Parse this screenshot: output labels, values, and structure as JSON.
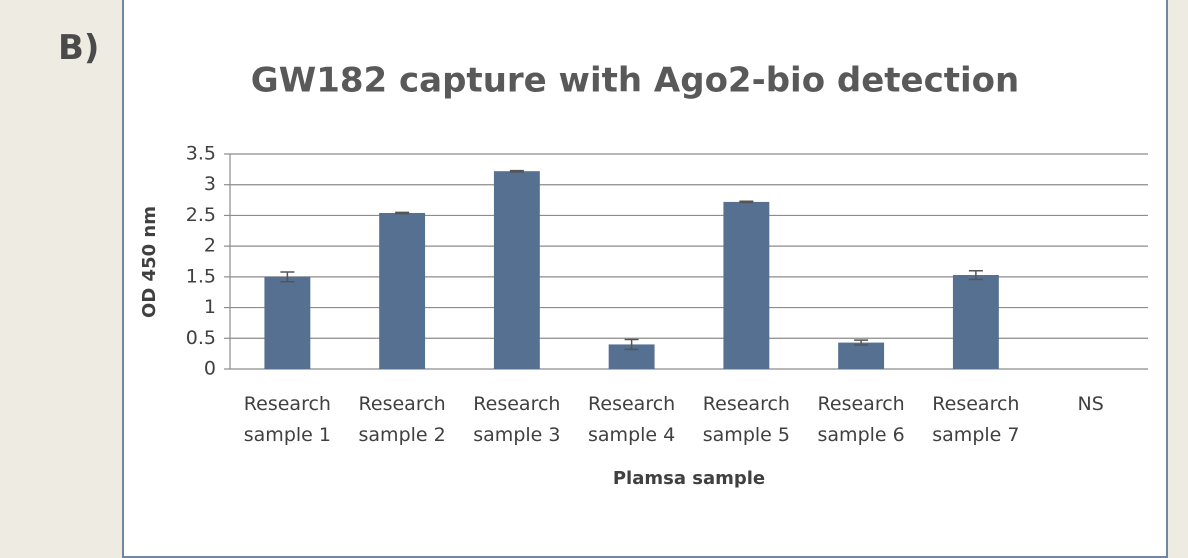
{
  "panel_label": "B)",
  "chart_data": {
    "type": "bar",
    "title": "GW182 capture with Ago2-bio detection",
    "y_label": "OD 450 nm",
    "x_label": "Plamsa sample",
    "categories": [
      "Research sample 1",
      "Research sample 2",
      "Research sample 3",
      "Research sample 4",
      "Research sample 5",
      "Research sample 6",
      "Research sample 7",
      "NS"
    ],
    "values": [
      1.5,
      2.54,
      3.22,
      0.4,
      2.72,
      0.43,
      1.53,
      0
    ],
    "errors": [
      0.08,
      0.01,
      0.01,
      0.08,
      0.01,
      0.04,
      0.07,
      null
    ],
    "color": "#557090",
    "ylim": [
      0,
      3.5
    ],
    "yticks": [
      0,
      0.5,
      1,
      1.5,
      2,
      2.5,
      3,
      3.5
    ],
    "grid": true
  }
}
